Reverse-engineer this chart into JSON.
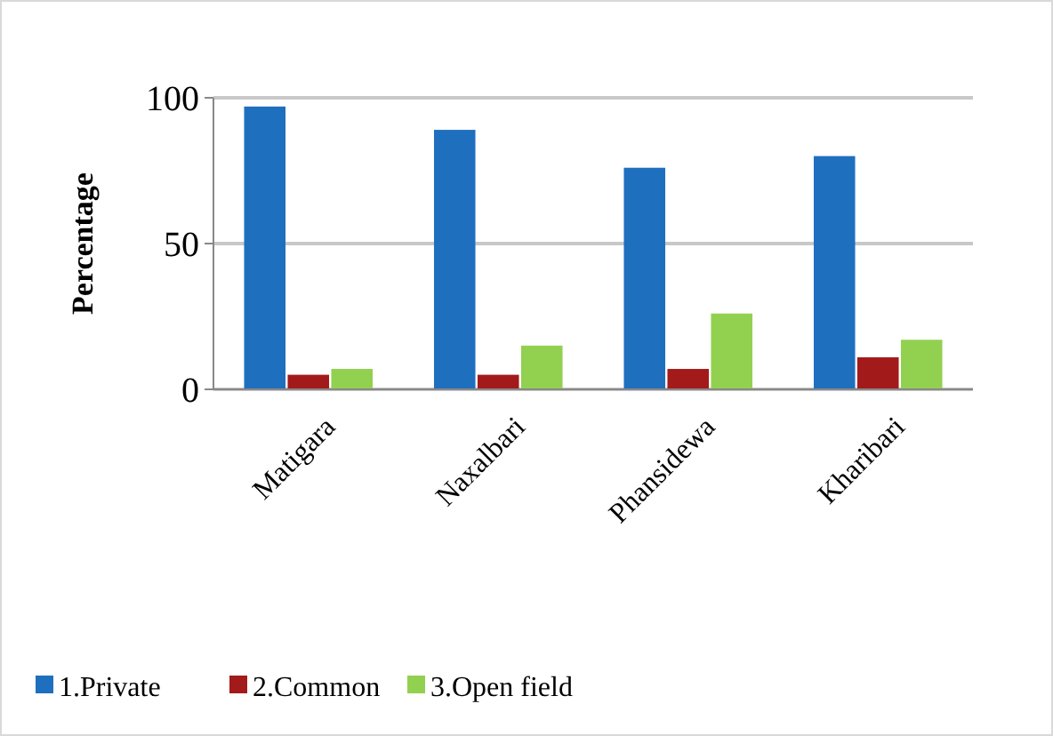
{
  "chart_data": {
    "type": "bar",
    "ylabel": "Percentage",
    "categories": [
      "Matigara",
      "Naxalbari",
      "Phansidewa",
      "Kharibari"
    ],
    "series": [
      {
        "name": "1.Private",
        "color": "#1f6fbf",
        "values": [
          97,
          89,
          76,
          80
        ]
      },
      {
        "name": "2.Common",
        "color": "#a31a1a",
        "values": [
          5,
          5,
          7,
          11
        ]
      },
      {
        "name": "3.Open field",
        "color": "#92d050",
        "values": [
          7,
          15,
          26,
          17
        ]
      }
    ],
    "ylim": [
      0,
      100
    ],
    "yticks": [
      0,
      50,
      100
    ],
    "grid": "y",
    "legend": "bottom"
  }
}
